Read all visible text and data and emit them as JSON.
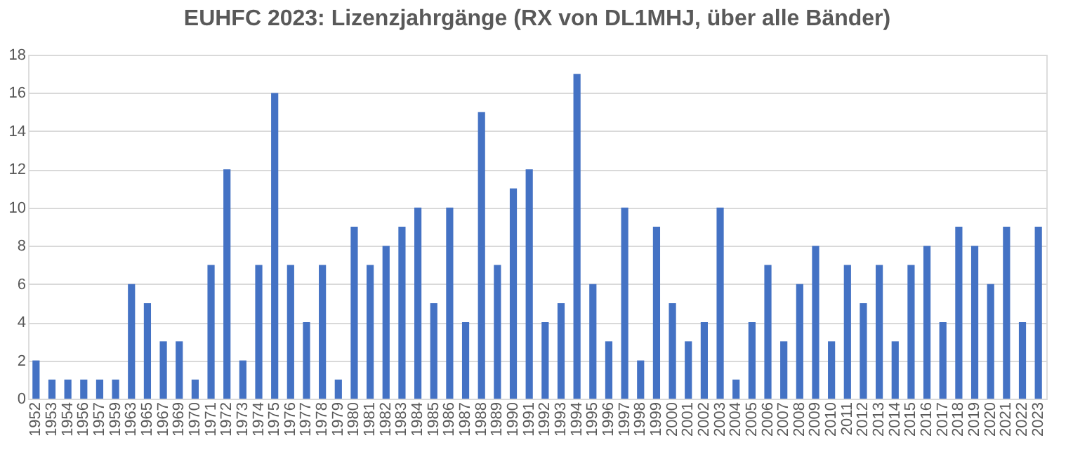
{
  "chart_data": {
    "type": "bar",
    "title": "EUHFC 2023: Lizenzjahrgänge (RX von DL1MHJ, über alle Bänder)",
    "categories": [
      "1952",
      "1953",
      "1954",
      "1956",
      "1957",
      "1959",
      "1963",
      "1965",
      "1967",
      "1969",
      "1970",
      "1971",
      "1972",
      "1973",
      "1974",
      "1975",
      "1976",
      "1977",
      "1978",
      "1979",
      "1980",
      "1981",
      "1982",
      "1983",
      "1984",
      "1985",
      "1986",
      "1987",
      "1988",
      "1989",
      "1990",
      "1991",
      "1992",
      "1993",
      "1994",
      "1995",
      "1996",
      "1997",
      "1998",
      "1999",
      "2000",
      "2001",
      "2002",
      "2003",
      "2004",
      "2005",
      "2006",
      "2007",
      "2008",
      "2009",
      "2010",
      "2011",
      "2012",
      "2013",
      "2014",
      "2015",
      "2016",
      "2017",
      "2018",
      "2019",
      "2020",
      "2021",
      "2022",
      "2023"
    ],
    "values": [
      2,
      1,
      1,
      1,
      1,
      1,
      6,
      5,
      3,
      3,
      1,
      7,
      12,
      2,
      7,
      16,
      7,
      4,
      7,
      1,
      9,
      7,
      8,
      9,
      10,
      5,
      10,
      4,
      15,
      7,
      11,
      12,
      4,
      5,
      17,
      6,
      3,
      10,
      2,
      9,
      5,
      3,
      4,
      10,
      1,
      4,
      7,
      3,
      6,
      8,
      3,
      7,
      5,
      7,
      3,
      7,
      8,
      4,
      9,
      8,
      6,
      9,
      4,
      9
    ],
    "color": "#4472c4",
    "ylim": [
      0,
      18
    ],
    "yticks": [
      0,
      2,
      4,
      6,
      8,
      10,
      12,
      14,
      16,
      18
    ],
    "grid": "y"
  }
}
